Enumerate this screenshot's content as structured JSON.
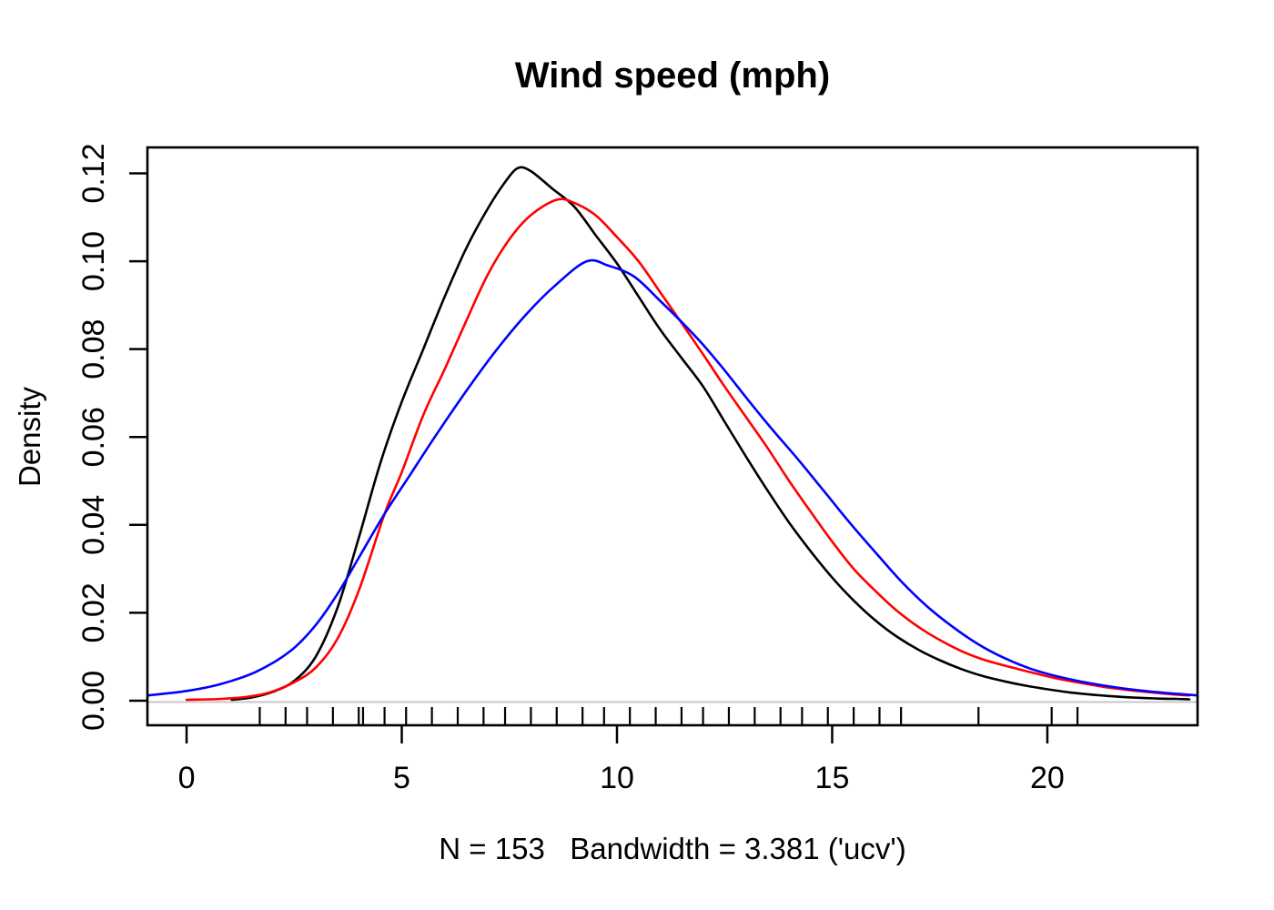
{
  "chart_data": {
    "type": "line",
    "title": "Wind speed (mph)",
    "xlabel": "N = 153   Bandwidth = 3.381 ('ucv')",
    "ylabel": "Density",
    "xlim": [
      -0.91,
      23.49
    ],
    "ylim": [
      -0.0056,
      0.1259
    ],
    "grid": false,
    "legend": "none",
    "frame": "box",
    "background": "#ffffff",
    "x_tick_values": [
      0,
      5,
      10,
      15,
      20
    ],
    "x_tick_labels": [
      "0",
      "5",
      "10",
      "15",
      "20"
    ],
    "y_tick_values": [
      0.0,
      0.02,
      0.04,
      0.06,
      0.08,
      0.1,
      0.12
    ],
    "y_tick_labels": [
      "0.00",
      "0.02",
      "0.04",
      "0.06",
      "0.08",
      "0.10",
      "0.12"
    ],
    "zero_line": {
      "y": 0,
      "color": "#C9C9C9"
    },
    "rug": {
      "side": "bottom",
      "color": "#000000",
      "values": [
        1.7,
        2.3,
        2.8,
        3.4,
        4.0,
        4.1,
        4.6,
        5.1,
        5.7,
        6.3,
        6.9,
        7.4,
        8.0,
        8.6,
        9.2,
        9.7,
        10.3,
        10.9,
        11.5,
        12.0,
        12.6,
        13.2,
        13.8,
        14.3,
        14.9,
        15.5,
        16.1,
        16.6,
        18.4,
        20.1,
        20.7
      ]
    },
    "series": [
      {
        "name": "density-curve-black",
        "color": "#000000",
        "peak": {
          "x": 7.7,
          "density": 0.121
        },
        "points": [
          [
            1.05,
            0.0002
          ],
          [
            1.5,
            0.0007
          ],
          [
            2.0,
            0.002
          ],
          [
            2.5,
            0.0045
          ],
          [
            3.0,
            0.01
          ],
          [
            3.5,
            0.021
          ],
          [
            4.0,
            0.037
          ],
          [
            4.5,
            0.054
          ],
          [
            5.0,
            0.068
          ],
          [
            5.5,
            0.08
          ],
          [
            6.0,
            0.092
          ],
          [
            6.5,
            0.103
          ],
          [
            7.0,
            0.112
          ],
          [
            7.4,
            0.118
          ],
          [
            7.7,
            0.1212
          ],
          [
            8.0,
            0.1205
          ],
          [
            8.5,
            0.1165
          ],
          [
            9.0,
            0.1125
          ],
          [
            9.5,
            0.106
          ],
          [
            10.0,
            0.0995
          ],
          [
            10.5,
            0.092
          ],
          [
            11.0,
            0.0845
          ],
          [
            11.5,
            0.078
          ],
          [
            12.0,
            0.0715
          ],
          [
            12.5,
            0.0635
          ],
          [
            13.0,
            0.0555
          ],
          [
            13.5,
            0.0478
          ],
          [
            14.0,
            0.0405
          ],
          [
            14.5,
            0.034
          ],
          [
            15.0,
            0.028
          ],
          [
            15.5,
            0.0228
          ],
          [
            16.0,
            0.0183
          ],
          [
            16.5,
            0.0146
          ],
          [
            17.0,
            0.0116
          ],
          [
            17.5,
            0.0092
          ],
          [
            18.0,
            0.0072
          ],
          [
            18.5,
            0.0056
          ],
          [
            19.0,
            0.0044
          ],
          [
            19.5,
            0.0034
          ],
          [
            20.0,
            0.0026
          ],
          [
            20.5,
            0.0019
          ],
          [
            21.0,
            0.0014
          ],
          [
            21.5,
            0.001
          ],
          [
            22.0,
            0.0007
          ],
          [
            22.5,
            0.0005
          ],
          [
            23.0,
            0.0004
          ],
          [
            23.3,
            0.0003
          ]
        ]
      },
      {
        "name": "density-curve-red",
        "color": "#FF0000",
        "peak": {
          "x": 8.6,
          "density": 0.114
        },
        "points": [
          [
            0.0,
            0.0002
          ],
          [
            0.8,
            0.0004
          ],
          [
            1.5,
            0.001
          ],
          [
            2.0,
            0.0021
          ],
          [
            2.5,
            0.0042
          ],
          [
            3.0,
            0.0075
          ],
          [
            3.5,
            0.014
          ],
          [
            4.0,
            0.025
          ],
          [
            4.6,
            0.0425
          ],
          [
            5.0,
            0.052
          ],
          [
            5.5,
            0.065
          ],
          [
            6.0,
            0.0755
          ],
          [
            6.5,
            0.0865
          ],
          [
            7.0,
            0.097
          ],
          [
            7.5,
            0.105
          ],
          [
            8.0,
            0.1105
          ],
          [
            8.6,
            0.114
          ],
          [
            9.0,
            0.1133
          ],
          [
            9.5,
            0.1105
          ],
          [
            10.0,
            0.1055
          ],
          [
            10.5,
            0.1
          ],
          [
            11.0,
            0.093
          ],
          [
            11.5,
            0.086
          ],
          [
            12.0,
            0.0788
          ],
          [
            12.5,
            0.0715
          ],
          [
            13.0,
            0.0645
          ],
          [
            13.5,
            0.0575
          ],
          [
            14.0,
            0.05
          ],
          [
            14.5,
            0.043
          ],
          [
            15.0,
            0.0362
          ],
          [
            15.5,
            0.03
          ],
          [
            16.0,
            0.025
          ],
          [
            16.5,
            0.0205
          ],
          [
            17.0,
            0.0168
          ],
          [
            17.5,
            0.0138
          ],
          [
            18.0,
            0.0113
          ],
          [
            18.5,
            0.0094
          ],
          [
            19.0,
            0.008
          ],
          [
            19.6,
            0.0065
          ],
          [
            20.2,
            0.0051
          ],
          [
            20.8,
            0.004
          ],
          [
            21.4,
            0.003
          ],
          [
            22.0,
            0.0023
          ],
          [
            22.6,
            0.0017
          ],
          [
            23.1,
            0.0013
          ],
          [
            23.3,
            0.0012
          ]
        ]
      },
      {
        "name": "density-curve-blue",
        "color": "#0000FF",
        "peak": {
          "x": 9.3,
          "density": 0.1
        },
        "points": [
          [
            -0.91,
            0.0012
          ],
          [
            0.0,
            0.0022
          ],
          [
            0.8,
            0.0038
          ],
          [
            1.6,
            0.0065
          ],
          [
            2.4,
            0.0112
          ],
          [
            3.0,
            0.0172
          ],
          [
            3.5,
            0.0242
          ],
          [
            4.0,
            0.0325
          ],
          [
            4.6,
            0.0425
          ],
          [
            5.2,
            0.0515
          ],
          [
            5.8,
            0.0605
          ],
          [
            6.5,
            0.0705
          ],
          [
            7.2,
            0.0798
          ],
          [
            7.9,
            0.088
          ],
          [
            8.6,
            0.0948
          ],
          [
            9.3,
            0.1
          ],
          [
            9.8,
            0.099
          ],
          [
            10.4,
            0.0965
          ],
          [
            11.0,
            0.091
          ],
          [
            11.5,
            0.0862
          ],
          [
            12.0,
            0.081
          ],
          [
            12.5,
            0.0752
          ],
          [
            13.0,
            0.069
          ],
          [
            13.6,
            0.0618
          ],
          [
            14.2,
            0.055
          ],
          [
            14.8,
            0.0478
          ],
          [
            15.4,
            0.0406
          ],
          [
            16.0,
            0.0338
          ],
          [
            16.6,
            0.0272
          ],
          [
            17.2,
            0.0215
          ],
          [
            17.8,
            0.0168
          ],
          [
            18.4,
            0.0128
          ],
          [
            19.0,
            0.0097
          ],
          [
            19.6,
            0.0073
          ],
          [
            20.2,
            0.0056
          ],
          [
            20.8,
            0.0043
          ],
          [
            21.4,
            0.0033
          ],
          [
            22.0,
            0.0025
          ],
          [
            22.6,
            0.0019
          ],
          [
            23.1,
            0.0015
          ],
          [
            23.49,
            0.0012
          ]
        ]
      }
    ]
  }
}
